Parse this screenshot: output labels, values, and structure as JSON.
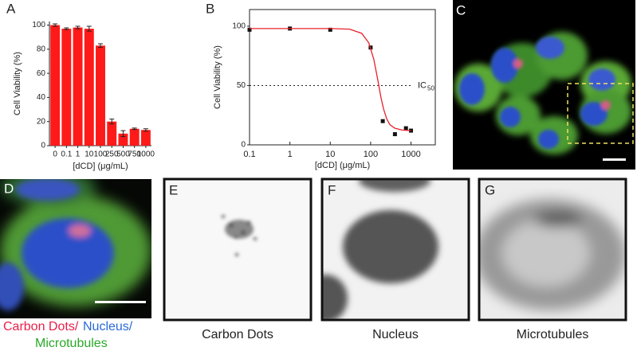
{
  "chart_data": [
    {
      "type": "bar",
      "panel": "A",
      "categories": [
        "0",
        "0.1",
        "1",
        "10",
        "100",
        "250",
        "500",
        "750",
        "1000"
      ],
      "values": [
        100,
        97,
        98,
        97,
        83,
        20,
        10,
        14,
        13
      ],
      "errors": [
        1,
        0.7,
        1,
        2,
        1.5,
        2,
        2.5,
        0.6,
        1
      ],
      "color": "#ff1a1a",
      "xlabel": "[dCD]  (μg/mL)",
      "ylabel": "Cell Viability (%)",
      "ylim": [
        0,
        103
      ],
      "yticks": [
        0,
        20,
        40,
        60,
        80,
        100
      ]
    },
    {
      "type": "scatter",
      "panel": "B",
      "xscale": "log",
      "xlabel": "[dCD]  (μg/mL)",
      "ylabel": "Cell Viability (%)",
      "xlim": [
        0.1,
        4000
      ],
      "xticks": [
        0.1,
        1,
        10,
        100,
        1000
      ],
      "ylim": [
        0,
        114
      ],
      "yticks": [
        0,
        50,
        100
      ],
      "series": [
        {
          "mode": "markers",
          "color": "#111111",
          "x": [
            0.1,
            1,
            10,
            100,
            200,
            400,
            750,
            1000
          ],
          "values": [
            97,
            98,
            97,
            82,
            20,
            9,
            14,
            12
          ]
        },
        {
          "mode": "line",
          "color": "#e8202a",
          "x": [
            0.1,
            1,
            10,
            30,
            60,
            90,
            120,
            150,
            180,
            210,
            250,
            300,
            400,
            600,
            1000
          ],
          "values": [
            98,
            98,
            98,
            97.5,
            94,
            86,
            72,
            55,
            40,
            30,
            22,
            17,
            14,
            12.5,
            12
          ]
        }
      ],
      "annotation": {
        "text": "IC",
        "sub": "50",
        "value": 50
      }
    }
  ],
  "figure": {
    "panel_labels": [
      "C",
      "D",
      "E",
      "F",
      "G"
    ],
    "legend_d": [
      "Carbon Dots/",
      "Nucleus/",
      "Microtubules"
    ],
    "captions": [
      "Carbon Dots",
      "Nucleus",
      "Microtubules"
    ]
  }
}
